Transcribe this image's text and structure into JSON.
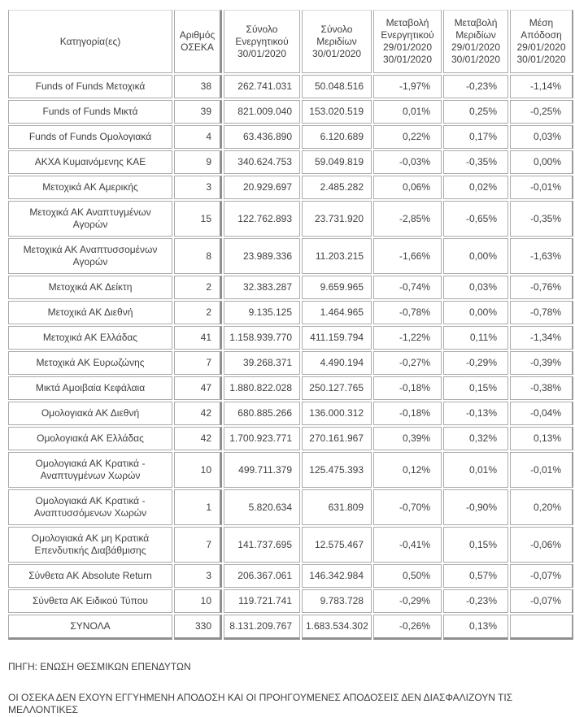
{
  "table": {
    "headers": [
      "Κατηγορία(ες)",
      "Αριθμός\nΟΣΕΚΑ",
      "Σύνολο\nΕνεργητικού\n30/01/2020",
      "Σύνολο\nΜεριδίων\n30/01/2020",
      "Μεταβολή\nΕνεργητικού\n29/01/2020\n30/01/2020",
      "Μεταβολή\nΜεριδίων\n29/01/2020\n30/01/2020",
      "Μέση\nΑπόδοση\n29/01/2020\n30/01/2020"
    ],
    "rows": [
      [
        "Funds of Funds Μετοχικά",
        "38",
        "262.741.031",
        "50.048.516",
        "-1,97%",
        "-0,23%",
        "-1,14%"
      ],
      [
        "Funds of Funds Μικτά",
        "39",
        "821.009.040",
        "153.020.519",
        "0,01%",
        "0,25%",
        "-0,25%"
      ],
      [
        "Funds of Funds Ομολογιακά",
        "4",
        "63.436.890",
        "6.120.689",
        "0,22%",
        "0,17%",
        "0,03%"
      ],
      [
        "ΑΚΧΑ Κυμαινόμενης ΚΑΕ",
        "9",
        "340.624.753",
        "59.049.819",
        "-0,03%",
        "-0,35%",
        "0,00%"
      ],
      [
        "Μετοχικά ΑΚ Αμερικής",
        "3",
        "20.929.697",
        "2.485.282",
        "0,06%",
        "0,02%",
        "-0,01%"
      ],
      [
        "Μετοχικά ΑΚ Αναπτυγμένων Αγορών",
        "15",
        "122.762.893",
        "23.731.920",
        "-2,85%",
        "-0,65%",
        "-0,35%"
      ],
      [
        "Μετοχικά ΑΚ Αναπτυσσομένων Αγορών",
        "8",
        "23.989.336",
        "11.203.215",
        "-1,66%",
        "0,00%",
        "-1,63%"
      ],
      [
        "Μετοχικά ΑΚ Δείκτη",
        "2",
        "32.383.287",
        "9.659.965",
        "-0,74%",
        "0,03%",
        "-0,76%"
      ],
      [
        "Μετοχικά ΑΚ Διεθνή",
        "2",
        "9.135.125",
        "1.464.965",
        "-0,78%",
        "0,00%",
        "-0,78%"
      ],
      [
        "Μετοχικά ΑΚ Ελλάδας",
        "41",
        "1.158.939.770",
        "411.159.794",
        "-1,22%",
        "0,11%",
        "-1,34%"
      ],
      [
        "Μετοχικά ΑΚ Ευρωζώνης",
        "7",
        "39.268.371",
        "4.490.194",
        "-0,27%",
        "-0,29%",
        "-0,39%"
      ],
      [
        "Μικτά Αμοιβαία Κεφάλαια",
        "47",
        "1.880.822.028",
        "250.127.765",
        "-0,18%",
        "0,15%",
        "-0,38%"
      ],
      [
        "Ομολογιακά ΑΚ Διεθνή",
        "42",
        "680.885.266",
        "136.000.312",
        "-0,18%",
        "-0,13%",
        "-0,04%"
      ],
      [
        "Ομολογιακά ΑΚ Ελλάδας",
        "42",
        "1.700.923.771",
        "270.161.967",
        "0,39%",
        "0,32%",
        "0,13%"
      ],
      [
        "Ομολογιακά ΑΚ Κρατικά - Αναπτυγμένων Χωρών",
        "10",
        "499.711.379",
        "125.475.393",
        "0,12%",
        "0,01%",
        "-0,01%"
      ],
      [
        "Ομολογιακά ΑΚ Κρατικά - Αναπτυσσόμενων Χωρών",
        "1",
        "5.820.634",
        "631.809",
        "-0,70%",
        "-0,90%",
        "0,20%"
      ],
      [
        "Ομολογιακά ΑΚ μη Κρατικά Επενδυτικής Διαβάθμισης",
        "7",
        "141.737.695",
        "12.575.467",
        "-0,41%",
        "0,15%",
        "-0,06%"
      ],
      [
        "Σύνθετα ΑΚ Absolute Return",
        "3",
        "206.367.061",
        "146.342.984",
        "0,50%",
        "0,57%",
        "-0,07%"
      ],
      [
        "Σύνθετα ΑΚ Ειδικού Τύπου",
        "10",
        "119.721.741",
        "9.783.728",
        "-0,29%",
        "-0,23%",
        "-0,07%"
      ],
      [
        "ΣΥΝΟΛΑ",
        "330",
        "8.131.209.767",
        "1.683.534.302",
        "-0,26%",
        "0,13%",
        ""
      ]
    ]
  },
  "footer": {
    "source": "ΠΗΓΗ: ΕΝΩΣΗ ΘΕΣΜΙΚΩΝ ΕΠΕΝΔΥΤΩΝ",
    "disclaimer": "ΟΙ ΟΣΕΚΑ ΔΕΝ ΕΧΟΥΝ ΕΓΓΥΗΜΕΝΗ ΑΠΟΔΟΣΗ ΚΑΙ ΟΙ ΠΡΟΗΓΟΥΜΕΝΕΣ ΑΠΟΔΟΣΕΙΣ ΔΕΝ ΔΙΑΣΦΑΛΙΖΟΥΝ ΤΙΣ ΜΕΛΛΟΝΤΙΚΕΣ"
  },
  "colors": {
    "text": "#3f3f3f",
    "border_thin": "#ababab",
    "border_thick": "#8f8f8f",
    "background": "#ffffff"
  }
}
